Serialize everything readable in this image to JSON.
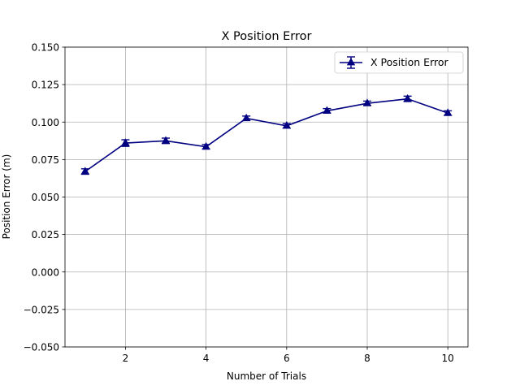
{
  "chart_data": {
    "type": "line",
    "title": "X Position Error",
    "xlabel": "Number of Trials",
    "ylabel": "Position Error (m)",
    "xlim": [
      0.5,
      10.5
    ],
    "ylim": [
      -0.05,
      0.15
    ],
    "xticks": [
      2,
      4,
      6,
      8,
      10
    ],
    "xtick_labels": [
      "2",
      "4",
      "6",
      "8",
      "10"
    ],
    "yticks": [
      -0.05,
      -0.025,
      0.0,
      0.025,
      0.05,
      0.075,
      0.1,
      0.125,
      0.15
    ],
    "ytick_labels": [
      "−0.050",
      "−0.025",
      "0.000",
      "0.025",
      "0.050",
      "0.075",
      "0.100",
      "0.125",
      "0.150"
    ],
    "grid": true,
    "legend_position": "top-right",
    "series": [
      {
        "name": "X Position Error",
        "color": "#000080",
        "marker": "triangle-up",
        "x": [
          1,
          2,
          3,
          4,
          5,
          6,
          7,
          8,
          9,
          10
        ],
        "y": [
          0.067,
          0.086,
          0.0875,
          0.0835,
          0.1025,
          0.0975,
          0.1075,
          0.1125,
          0.1155,
          0.106
        ],
        "error": [
          0.0018,
          0.0022,
          0.0018,
          0.0015,
          0.0015,
          0.0015,
          0.0015,
          0.0015,
          0.0018,
          0.0015
        ]
      }
    ]
  }
}
